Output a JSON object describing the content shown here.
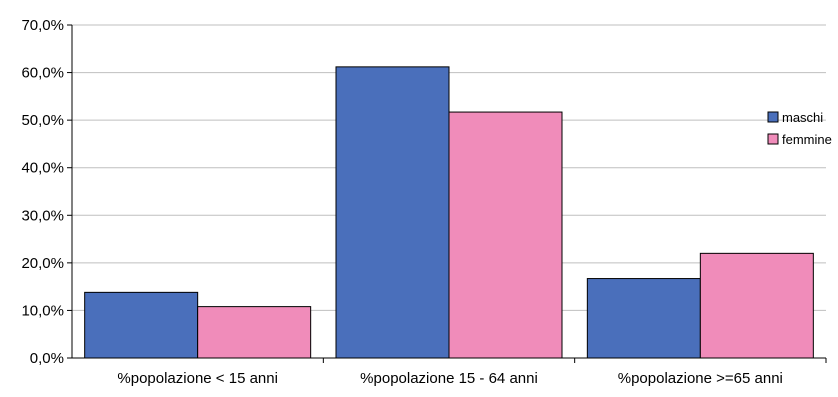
{
  "chart_data": {
    "type": "bar",
    "categories": [
      "%popolazione < 15 anni",
      "%popolazione 15 - 64 anni",
      "%popolazione >=65 anni"
    ],
    "series": [
      {
        "name": "maschi",
        "values": [
          13.8,
          61.2,
          16.7
        ],
        "color": "#4a6fbb"
      },
      {
        "name": "femmine",
        "values": [
          10.8,
          51.7,
          22.0
        ],
        "color": "#f08cba"
      }
    ],
    "yticks": [
      "0,0%",
      "10,0%",
      "20,0%",
      "30,0%",
      "40,0%",
      "50,0%",
      "60,0%",
      "70,0%"
    ],
    "ylim": [
      0,
      70
    ],
    "grid": true,
    "legend_position": "right",
    "title": "",
    "xlabel": "",
    "ylabel": ""
  }
}
